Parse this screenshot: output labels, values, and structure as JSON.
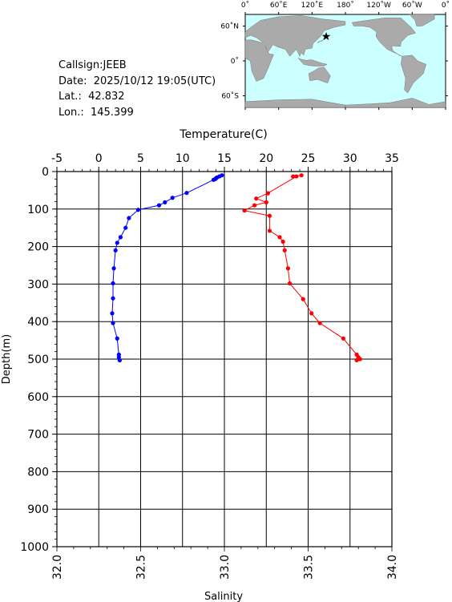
{
  "info": {
    "callsign": "Callsign:JEEB",
    "date": "Date:  2025/10/12 19:05(UTC)",
    "lat": "Lat.:  42.832",
    "lon": "Lon.:  145.399"
  },
  "map": {
    "lon_labels": [
      "0˚",
      "60˚E",
      "120˚E",
      "180˚",
      "120˚W",
      "60˚W",
      "0˚"
    ],
    "lat_labels": [
      "60˚N",
      "0˚",
      "60˚S"
    ],
    "ocean_color": "#ccffff",
    "land_color": "#aaaaaa",
    "marker_icon": "star-icon",
    "marker_color": "#ff0000",
    "marker": {
      "lon": 145.399,
      "lat": 42.832
    }
  },
  "chart_data": {
    "type": "line",
    "top_axis_label": "Temperature(C)",
    "bottom_axis_label": "Salinity",
    "ylabel": "Depth(m)",
    "temperature_range": [
      -5,
      35
    ],
    "salinity_range": [
      32.0,
      34.0
    ],
    "depth_range": [
      0,
      1000
    ],
    "temperature_ticks": [
      "-5",
      "0",
      "5",
      "10",
      "15",
      "20",
      "25",
      "30",
      "35"
    ],
    "salinity_ticks": [
      "32.0",
      "32.5",
      "33.0",
      "33.5",
      "34.0"
    ],
    "depth_ticks": [
      "0",
      "100",
      "200",
      "300",
      "400",
      "500",
      "600",
      "700",
      "800",
      "900",
      "1000"
    ],
    "grid": true,
    "series": [
      {
        "axis": "temperature",
        "color": "#0000ff",
        "points": [
          [
            14.7,
            10
          ],
          [
            14.4,
            13
          ],
          [
            14.1,
            16
          ],
          [
            14.0,
            18
          ],
          [
            13.9,
            20
          ],
          [
            13.7,
            22
          ],
          [
            10.5,
            57
          ],
          [
            8.8,
            70
          ],
          [
            7.9,
            82
          ],
          [
            7.2,
            90
          ],
          [
            4.7,
            102
          ],
          [
            3.6,
            124
          ],
          [
            3.2,
            150
          ],
          [
            2.6,
            175
          ],
          [
            2.2,
            190
          ],
          [
            2.0,
            210
          ],
          [
            1.8,
            258
          ],
          [
            1.7,
            298
          ],
          [
            1.7,
            338
          ],
          [
            1.6,
            378
          ],
          [
            1.7,
            404
          ],
          [
            2.2,
            445
          ],
          [
            2.4,
            488
          ],
          [
            2.4,
            495
          ],
          [
            2.5,
            503
          ]
        ]
      },
      {
        "axis": "salinity",
        "color": "#ff0000",
        "points": [
          [
            33.46,
            10
          ],
          [
            33.41,
            13
          ],
          [
            33.43,
            13
          ],
          [
            33.26,
            58
          ],
          [
            33.19,
            72
          ],
          [
            33.25,
            82
          ],
          [
            33.18,
            90
          ],
          [
            33.12,
            104
          ],
          [
            33.27,
            118
          ],
          [
            33.27,
            158
          ],
          [
            33.33,
            175
          ],
          [
            33.35,
            187
          ],
          [
            33.36,
            210
          ],
          [
            33.38,
            258
          ],
          [
            33.39,
            298
          ],
          [
            33.47,
            340
          ],
          [
            33.52,
            378
          ],
          [
            33.57,
            404
          ],
          [
            33.71,
            445
          ],
          [
            33.79,
            488
          ],
          [
            33.8,
            495
          ],
          [
            33.81,
            500
          ],
          [
            33.79,
            503
          ]
        ]
      }
    ]
  }
}
